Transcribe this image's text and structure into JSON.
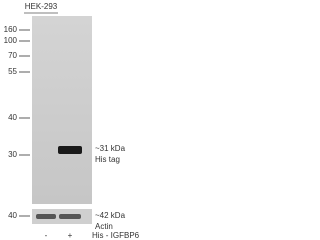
{
  "header": {
    "cell_line": "HEK-293"
  },
  "markers": [
    "160",
    "100",
    "70",
    "55",
    "40",
    "30"
  ],
  "actin_marker": "40",
  "bands": {
    "his_size": "~31 kDa",
    "his_label": "His tag",
    "actin_size": "~42 kDa",
    "actin_label": "Actin"
  },
  "lanes": {
    "minus": "-",
    "plus": "+",
    "construct": "His - IGFBP6"
  }
}
